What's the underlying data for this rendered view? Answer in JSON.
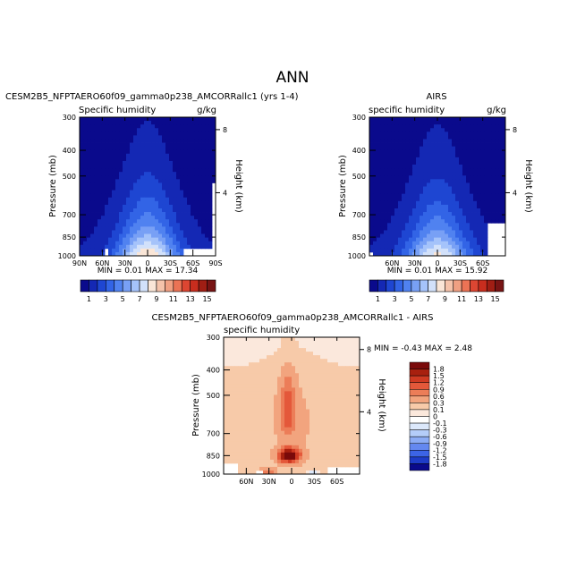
{
  "figure": {
    "title": "ANN"
  },
  "colors": {
    "blue_scale": [
      "#0a0a8c",
      "#1428b4",
      "#1e46d2",
      "#3264e6",
      "#5082f0",
      "#78a0f5",
      "#a5c3fa",
      "#d2e1fa"
    ],
    "red_scale": [
      "#fae6d7",
      "#f5c3aa",
      "#f0a082",
      "#eb7355",
      "#dc4632",
      "#c82d1e",
      "#a01e14",
      "#781414"
    ],
    "diff_scale": [
      "#0a0a8c",
      "#1e3cc8",
      "#3c64e6",
      "#6488f0",
      "#8cacf5",
      "#b4cdf9",
      "#dce8fb",
      "#ffffff",
      "#fbe8dc",
      "#f7caa9",
      "#f2a47e",
      "#ec7d58",
      "#e4583a",
      "#cf3a22",
      "#a8200f",
      "#7a0a0a"
    ]
  },
  "chart_data": [
    {
      "type": "contour",
      "panel_title": "CESM2B5_NFPTAERO60f09_gamma0p238_AMCORRallc1 (yrs 1-4)",
      "left_label": "Specific humidity",
      "right_label": "g/kg",
      "ylabel": "Pressure (mb)",
      "ylabel_right": "Height (km)",
      "yticks": [
        "300",
        "400",
        "500",
        "700",
        "850",
        "1000"
      ],
      "ytick_values": [
        300,
        400,
        500,
        700,
        850,
        1000
      ],
      "yticks_right": [
        "8",
        "4"
      ],
      "ytick_right_values": [
        8,
        4
      ],
      "xticks": [
        "90N",
        "60N",
        "30N",
        "0",
        "30S",
        "60S",
        "90S"
      ],
      "xtick_values": [
        90,
        60,
        30,
        0,
        -30,
        -60,
        -90
      ],
      "xlim": [
        90,
        -90
      ],
      "ylim": [
        300,
        1000
      ],
      "min_label": "MIN =   0.01   MAX =  17.34",
      "min": 0.01,
      "max": 17.34,
      "levels": [
        1,
        3,
        5,
        7,
        9,
        11,
        13,
        15
      ],
      "colorbar_labels": [
        "1",
        "3",
        "5",
        "7",
        "9",
        "11",
        "13",
        "15"
      ]
    },
    {
      "type": "contour",
      "panel_title": "AIRS",
      "left_label": "specific humidity",
      "right_label": "g/kg",
      "ylabel": "Pressure (mb)",
      "ylabel_right": "Height (km)",
      "yticks": [
        "300",
        "400",
        "500",
        "700",
        "850",
        "1000"
      ],
      "ytick_values": [
        300,
        400,
        500,
        700,
        850,
        1000
      ],
      "yticks_right": [
        "8",
        "4"
      ],
      "ytick_right_values": [
        8,
        4
      ],
      "xticks": [
        "60N",
        "30N",
        "0",
        "30S",
        "60S"
      ],
      "xtick_values": [
        60,
        30,
        0,
        -30,
        -60
      ],
      "xlim": [
        90,
        -90
      ],
      "ylim": [
        300,
        1000
      ],
      "min_label": "MIN =   0.01   MAX =  15.92",
      "min": 0.01,
      "max": 15.92,
      "levels": [
        1,
        3,
        5,
        7,
        9,
        11,
        13,
        15
      ],
      "colorbar_labels": [
        "1",
        "3",
        "5",
        "7",
        "9",
        "11",
        "13",
        "15"
      ]
    },
    {
      "type": "contour",
      "panel_title": "CESM2B5_NFPTAERO60f09_gamma0p238_AMCORRallc1 - AIRS",
      "left_label": "specific humidity",
      "ylabel": "Pressure (mb)",
      "ylabel_right": "Height (km)",
      "yticks": [
        "300",
        "400",
        "500",
        "700",
        "850",
        "1000"
      ],
      "ytick_values": [
        300,
        400,
        500,
        700,
        850,
        1000
      ],
      "yticks_right": [
        "8",
        "4"
      ],
      "ytick_right_values": [
        8,
        4
      ],
      "xticks": [
        "60N",
        "30N",
        "0",
        "30S",
        "60S"
      ],
      "xtick_values": [
        60,
        30,
        0,
        -30,
        -60
      ],
      "xlim": [
        90,
        -90
      ],
      "ylim": [
        300,
        1000
      ],
      "min_label": "MIN =  -0.43   MAX =    2.48",
      "min": -0.43,
      "max": 2.48,
      "levels": [
        -1.8,
        -1.5,
        -1.2,
        -0.9,
        -0.6,
        -0.3,
        -0.1,
        0,
        0.1,
        0.3,
        0.6,
        0.9,
        1.2,
        1.5,
        1.8
      ],
      "colorbar_labels": [
        "1.8",
        "1.5",
        "1.2",
        "0.9",
        "0.6",
        "0.3",
        "0.1",
        "0",
        "-0.1",
        "-0.3",
        "-0.6",
        "-0.9",
        "-1.2",
        "-1.5",
        "-1.8"
      ]
    }
  ]
}
